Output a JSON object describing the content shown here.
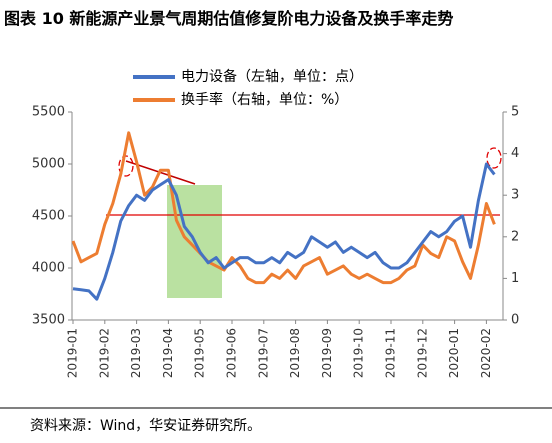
{
  "chart_data": {
    "type": "line",
    "title": "图表 10 新能源产业景气周期估值修复阶电力设备及换手率走势",
    "source": "资料来源：Wind，华安证券研究所。",
    "categories": [
      "2019-01",
      null,
      null,
      null,
      "2019-02",
      null,
      null,
      null,
      "2019-03",
      null,
      null,
      null,
      "2019-04",
      null,
      null,
      null,
      "2019-05",
      null,
      null,
      null,
      "2019-06",
      null,
      null,
      null,
      "2019-07",
      null,
      null,
      null,
      "2019-08",
      null,
      null,
      null,
      "2019-09",
      null,
      null,
      null,
      "2019-10",
      null,
      null,
      null,
      "2019-11",
      null,
      null,
      null,
      "2019-12",
      null,
      null,
      null,
      "2020-01",
      null,
      null,
      null,
      "2020-02",
      null
    ],
    "series": [
      {
        "name": "电力设备（左轴，单位：点）",
        "color": "#4472c4",
        "axis": "y",
        "values": [
          3800,
          3790,
          3780,
          3700,
          3900,
          4150,
          4450,
          4600,
          4700,
          4650,
          4750,
          4800,
          4850,
          4700,
          4400,
          4300,
          4150,
          4050,
          4100,
          4000,
          4050,
          4100,
          4100,
          4050,
          4050,
          4100,
          4050,
          4150,
          4100,
          4150,
          4300,
          4250,
          4200,
          4250,
          4150,
          4200,
          4150,
          4100,
          4150,
          4050,
          4000,
          4000,
          4050,
          4150,
          4250,
          4350,
          4300,
          4350,
          4450,
          4500,
          4200,
          4650,
          5000,
          4900
        ]
      },
      {
        "name": "换手率（右轴，单位：%）",
        "color": "#ed7d31",
        "axis": "y2",
        "values": [
          1.9,
          1.4,
          1.5,
          1.6,
          2.3,
          2.8,
          3.5,
          4.5,
          3.8,
          3.0,
          3.2,
          3.6,
          3.6,
          2.4,
          2.0,
          1.8,
          1.6,
          1.4,
          1.3,
          1.2,
          1.5,
          1.3,
          1.0,
          0.9,
          0.9,
          1.1,
          1.0,
          1.2,
          1.0,
          1.3,
          1.4,
          1.5,
          1.1,
          1.2,
          1.3,
          1.1,
          1.0,
          1.1,
          1.0,
          0.9,
          0.9,
          1.0,
          1.2,
          1.3,
          1.8,
          1.6,
          1.5,
          2.0,
          1.9,
          1.4,
          1.0,
          1.8,
          2.8,
          2.3
        ]
      }
    ],
    "ylim": [
      3500,
      5500
    ],
    "yticks": [
      3500,
      4000,
      4500,
      5000,
      5500
    ],
    "y2lim": [
      0,
      5
    ],
    "y2ticks": [
      0,
      1,
      2,
      3,
      4,
      5
    ]
  }
}
